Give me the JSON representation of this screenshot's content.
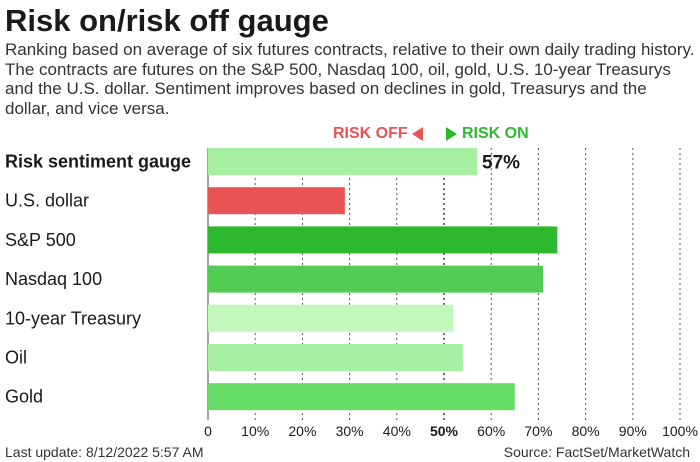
{
  "chart_data": {
    "type": "bar",
    "orientation": "horizontal",
    "title": "Risk on/risk off gauge",
    "subtitle": "Ranking based on average of six futures contracts, relative to their own daily trading history. The contracts are futures on the S&P 500, Nasdaq 100, oil, gold, U.S. 10-year Treasurys and the U.S. dollar. Sentiment improves based on declines in gold, Treasurys and the dollar, and vice versa.",
    "legend": {
      "off_label": "RISK OFF",
      "on_label": "RISK ON",
      "off_color": "#e85454",
      "on_color": "#2eb82e"
    },
    "categories": [
      "Risk sentiment gauge",
      "U.S. dollar",
      "S&P 500",
      "Nasdaq 100",
      "10-year Treasury",
      "Oil",
      "Gold"
    ],
    "values": [
      57,
      29,
      74,
      71,
      52,
      54,
      65
    ],
    "bar_colors": [
      "#a6eea0",
      "#e85454",
      "#2eb82e",
      "#52cc52",
      "#c2f7bc",
      "#a6eea0",
      "#66dc66"
    ],
    "bold_category_index": 0,
    "value_labels": [
      "57%"
    ],
    "xticks": [
      "0",
      "10%",
      "20%",
      "30%",
      "40%",
      "50%",
      "60%",
      "70%",
      "80%",
      "90%",
      "100%"
    ],
    "xlim": [
      0,
      100
    ],
    "grid": "vertical dashed",
    "footer_left": "Last update: 8/12/2022 5:57 AM",
    "footer_right": "Source: FactSet/MarketWatch"
  }
}
